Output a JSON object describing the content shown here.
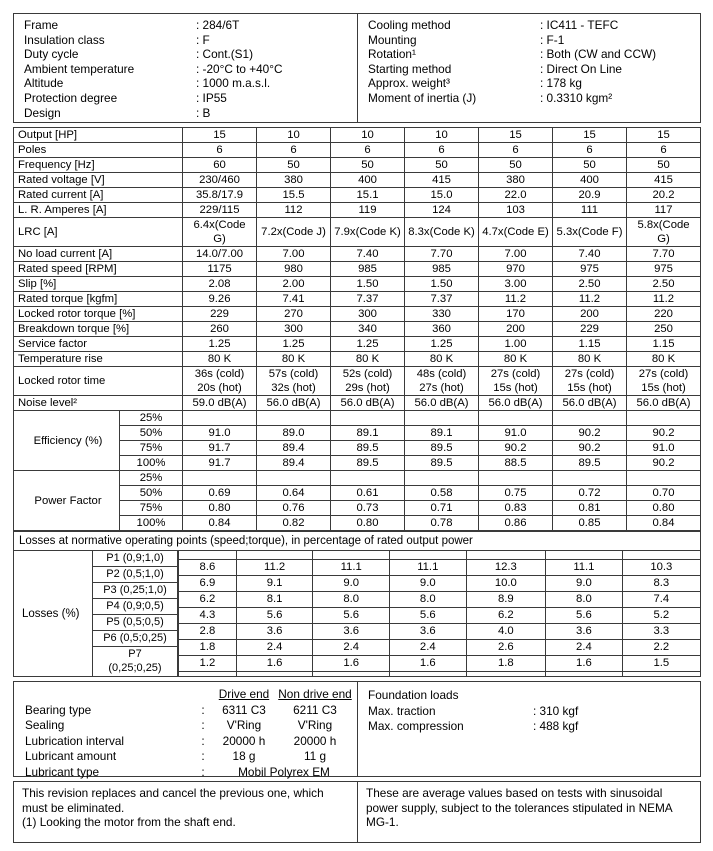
{
  "info_left": [
    {
      "label": "Frame",
      "value": ": 284/6T"
    },
    {
      "label": "Insulation class",
      "value": ": F"
    },
    {
      "label": "Duty cycle",
      "value": ": Cont.(S1)"
    },
    {
      "label": "Ambient temperature",
      "value": ": -20°C to +40°C"
    },
    {
      "label": "Altitude",
      "value": ": 1000 m.a.s.l."
    },
    {
      "label": "Protection degree",
      "value": ": IP55"
    },
    {
      "label": "Design",
      "value": ": B"
    }
  ],
  "info_right": [
    {
      "label": "Cooling method",
      "value": ": IC411 - TEFC"
    },
    {
      "label": "Mounting",
      "value": ": F-1"
    },
    {
      "label": "Rotation¹",
      "value": ": Both (CW and CCW)"
    },
    {
      "label": "Starting method",
      "value": ": Direct On Line"
    },
    {
      "label": "Approx. weight³",
      "value": ": 178 kg"
    },
    {
      "label": "Moment of inertia (J)",
      "value": ": 0.3310 kgm²"
    }
  ],
  "spec_table": {
    "rows": [
      {
        "label": "Output [HP]",
        "values": [
          "15",
          "10",
          "10",
          "10",
          "15",
          "15",
          "15"
        ]
      },
      {
        "label": "Poles",
        "values": [
          "6",
          "6",
          "6",
          "6",
          "6",
          "6",
          "6"
        ]
      },
      {
        "label": "Frequency [Hz]",
        "values": [
          "60",
          "50",
          "50",
          "50",
          "50",
          "50",
          "50"
        ]
      },
      {
        "label": "Rated voltage [V]",
        "values": [
          "230/460",
          "380",
          "400",
          "415",
          "380",
          "400",
          "415"
        ]
      },
      {
        "label": "Rated current [A]",
        "values": [
          "35.8/17.9",
          "15.5",
          "15.1",
          "15.0",
          "22.0",
          "20.9",
          "20.2"
        ]
      },
      {
        "label": "L. R. Amperes [A]",
        "values": [
          "229/115",
          "112",
          "119",
          "124",
          "103",
          "111",
          "117"
        ]
      },
      {
        "label": "LRC [A]",
        "values": [
          "6.4x(Code\nG)",
          "7.2x(Code J)",
          "7.9x(Code K)",
          "8.3x(Code K)",
          "4.7x(Code E)",
          "5.3x(Code F)",
          "5.8x(Code\nG)"
        ]
      },
      {
        "label": "No load current [A]",
        "values": [
          "14.0/7.00",
          "7.00",
          "7.40",
          "7.70",
          "7.00",
          "7.40",
          "7.70"
        ]
      },
      {
        "label": "Rated speed [RPM]",
        "values": [
          "1175",
          "980",
          "985",
          "985",
          "970",
          "975",
          "975"
        ]
      },
      {
        "label": "Slip [%]",
        "values": [
          "2.08",
          "2.00",
          "1.50",
          "1.50",
          "3.00",
          "2.50",
          "2.50"
        ]
      },
      {
        "label": "Rated torque [kgfm]",
        "values": [
          "9.26",
          "7.41",
          "7.37",
          "7.37",
          "11.2",
          "11.2",
          "11.2"
        ]
      },
      {
        "label": "Locked rotor torque [%]",
        "values": [
          "229",
          "270",
          "300",
          "330",
          "170",
          "200",
          "220"
        ]
      },
      {
        "label": "Breakdown torque [%]",
        "values": [
          "260",
          "300",
          "340",
          "360",
          "200",
          "229",
          "250"
        ]
      },
      {
        "label": "Service factor",
        "values": [
          "1.25",
          "1.25",
          "1.25",
          "1.25",
          "1.00",
          "1.15",
          "1.15"
        ]
      },
      {
        "label": "Temperature rise",
        "values": [
          "80 K",
          "80 K",
          "80 K",
          "80 K",
          "80 K",
          "80 K",
          "80 K"
        ]
      },
      {
        "label": "Locked rotor time",
        "values": [
          "36s (cold)\n20s (hot)",
          "57s (cold)\n32s (hot)",
          "52s (cold)\n29s (hot)",
          "48s (cold)\n27s (hot)",
          "27s (cold)\n15s (hot)",
          "27s (cold)\n15s (hot)",
          "27s (cold)\n15s (hot)"
        ]
      },
      {
        "label": "Noise level²",
        "values": [
          "59.0 dB(A)",
          "56.0 dB(A)",
          "56.0 dB(A)",
          "56.0 dB(A)",
          "56.0 dB(A)",
          "56.0 dB(A)",
          "56.0 dB(A)"
        ]
      }
    ],
    "efficiency": {
      "label": "Efficiency (%)",
      "rows": [
        {
          "pct": "25%",
          "values": [
            "",
            "",
            "",
            "",
            "",
            "",
            ""
          ]
        },
        {
          "pct": "50%",
          "values": [
            "91.0",
            "89.0",
            "89.1",
            "89.1",
            "91.0",
            "90.2",
            "90.2"
          ]
        },
        {
          "pct": "75%",
          "values": [
            "91.7",
            "89.4",
            "89.5",
            "89.5",
            "90.2",
            "90.2",
            "91.0"
          ]
        },
        {
          "pct": "100%",
          "values": [
            "91.7",
            "89.4",
            "89.5",
            "89.5",
            "88.5",
            "89.5",
            "90.2"
          ]
        }
      ]
    },
    "power_factor": {
      "label": "Power Factor",
      "rows": [
        {
          "pct": "25%",
          "values": [
            "",
            "",
            "",
            "",
            "",
            "",
            ""
          ]
        },
        {
          "pct": "50%",
          "values": [
            "0.69",
            "0.64",
            "0.61",
            "0.58",
            "0.75",
            "0.72",
            "0.70"
          ]
        },
        {
          "pct": "75%",
          "values": [
            "0.80",
            "0.76",
            "0.73",
            "0.71",
            "0.83",
            "0.81",
            "0.80"
          ]
        },
        {
          "pct": "100%",
          "values": [
            "0.84",
            "0.82",
            "0.80",
            "0.78",
            "0.86",
            "0.85",
            "0.84"
          ]
        }
      ]
    }
  },
  "losses": {
    "header": "Losses at normative operating points (speed;torque), in percentage of rated output power",
    "label": "Losses (%)",
    "points": [
      "P1 (0,9;1,0)",
      "P2 (0,5;1,0)",
      "P3 (0,25;1,0)",
      "P4 (0,9;0,5)",
      "P5 (0,5;0,5)",
      "P6 (0,5;0,25)",
      "P7\n(0,25;0,25)"
    ],
    "rows": [
      [
        "8.6",
        "11.2",
        "11.1",
        "11.1",
        "12.3",
        "11.1",
        "10.3"
      ],
      [
        "6.9",
        "9.1",
        "9.0",
        "9.0",
        "10.0",
        "9.0",
        "8.3"
      ],
      [
        "6.2",
        "8.1",
        "8.0",
        "8.0",
        "8.9",
        "8.0",
        "7.4"
      ],
      [
        "4.3",
        "5.6",
        "5.6",
        "5.6",
        "6.2",
        "5.6",
        "5.2"
      ],
      [
        "2.8",
        "3.6",
        "3.6",
        "3.6",
        "4.0",
        "3.6",
        "3.3"
      ],
      [
        "1.8",
        "2.4",
        "2.4",
        "2.4",
        "2.6",
        "2.4",
        "2.2"
      ],
      [
        "1.2",
        "1.6",
        "1.6",
        "1.6",
        "1.8",
        "1.6",
        "1.5"
      ]
    ]
  },
  "bearing": {
    "colon": ":",
    "col_headers": {
      "de": "Drive end",
      "nde": "Non drive end"
    },
    "rows": [
      {
        "label": "Bearing type",
        "de": "6311 C3",
        "nde": "6211 C3"
      },
      {
        "label": "Sealing",
        "de": "V'Ring",
        "nde": "V'Ring"
      },
      {
        "label": "Lubrication interval",
        "de": "20000 h",
        "nde": "20000 h"
      },
      {
        "label": "Lubricant amount",
        "de": "18 g",
        "nde": "11 g"
      }
    ],
    "type_row": {
      "label": "Lubricant type",
      "value": "Mobil Polyrex EM"
    }
  },
  "foundation": {
    "title": "Foundation loads",
    "rows": [
      {
        "label": "Max. traction",
        "value": ": 310 kgf"
      },
      {
        "label": "Max. compression",
        "value": ": 488 kgf"
      }
    ]
  },
  "notes": {
    "left": "This revision replaces and cancel the previous one, which must be eliminated.\n(1) Looking the motor from the shaft end.",
    "right": "These are average values based on tests with sinusoidal power supply, subject to the tolerances stipulated in NEMA MG-1."
  }
}
